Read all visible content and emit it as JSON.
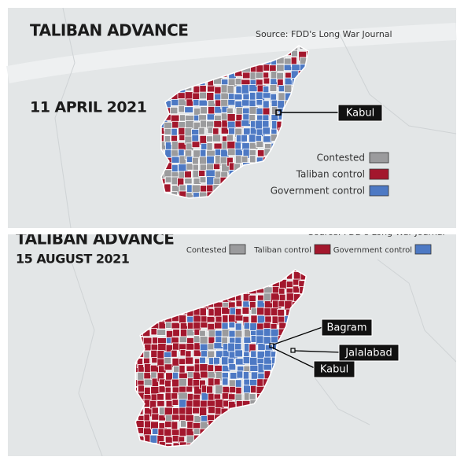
{
  "panels": [
    {
      "title": "TALIBAN ADVANCE",
      "date": "11 APRIL 2021",
      "source": "Source: FDD's Long War Journal",
      "legend": [
        {
          "label": "Contested",
          "color": "#9b9b9d"
        },
        {
          "label": "Taliban control",
          "color": "#a3172d"
        },
        {
          "label": "Government control",
          "color": "#4d79c4"
        }
      ],
      "places": [
        "Kabul"
      ]
    },
    {
      "title": "TALIBAN ADVANCE",
      "date": "15 AUGUST 2021",
      "source": "Source: FDD's Long War Journal",
      "legend": [
        {
          "label": "Contested",
          "color": "#9b9b9d"
        },
        {
          "label": "Taliban control",
          "color": "#a3172d"
        },
        {
          "label": "Government control",
          "color": "#4d79c4"
        }
      ],
      "places": [
        "Bagram",
        "Jalalabad",
        "Kabul"
      ]
    }
  ]
}
